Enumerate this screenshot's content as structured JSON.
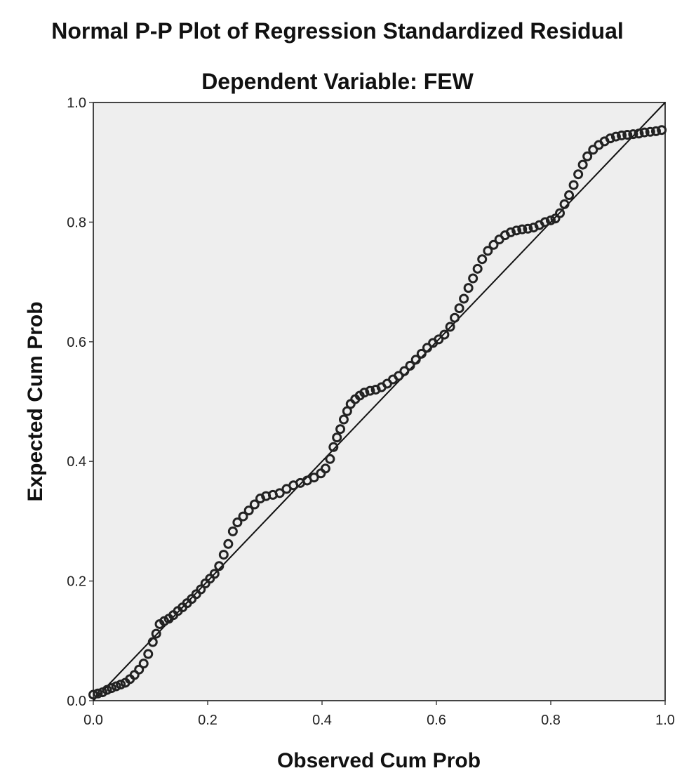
{
  "chart_data": {
    "type": "scatter",
    "title": "Normal P-P Plot of Regression Standardized Residual",
    "subtitle": "Dependent Variable: FEW",
    "xlabel": "Observed Cum Prob",
    "ylabel": "Expected Cum Prob",
    "xlim": [
      0.0,
      1.0
    ],
    "ylim": [
      0.0,
      1.0
    ],
    "xticks": [
      "0.0",
      "0.2",
      "0.4",
      "0.6",
      "0.8",
      "1.0"
    ],
    "yticks": [
      "0.0",
      "0.2",
      "0.4",
      "0.6",
      "0.8",
      "1.0"
    ],
    "grid": false,
    "reference_line": [
      [
        0.0,
        0.0
      ],
      [
        1.0,
        1.0
      ]
    ],
    "colors": {
      "plot_background": "#eeeeee",
      "points": "#222222",
      "line": "#111111"
    },
    "series": [
      {
        "points": [
          [
            0.0,
            0.01
          ],
          [
            0.008,
            0.012
          ],
          [
            0.016,
            0.014
          ],
          [
            0.024,
            0.018
          ],
          [
            0.032,
            0.021
          ],
          [
            0.04,
            0.024
          ],
          [
            0.048,
            0.027
          ],
          [
            0.056,
            0.03
          ],
          [
            0.064,
            0.036
          ],
          [
            0.072,
            0.043
          ],
          [
            0.08,
            0.052
          ],
          [
            0.088,
            0.062
          ],
          [
            0.096,
            0.078
          ],
          [
            0.104,
            0.098
          ],
          [
            0.11,
            0.112
          ],
          [
            0.116,
            0.128
          ],
          [
            0.124,
            0.133
          ],
          [
            0.132,
            0.137
          ],
          [
            0.14,
            0.143
          ],
          [
            0.148,
            0.15
          ],
          [
            0.156,
            0.156
          ],
          [
            0.164,
            0.163
          ],
          [
            0.172,
            0.17
          ],
          [
            0.18,
            0.178
          ],
          [
            0.188,
            0.186
          ],
          [
            0.196,
            0.196
          ],
          [
            0.204,
            0.204
          ],
          [
            0.212,
            0.212
          ],
          [
            0.22,
            0.225
          ],
          [
            0.228,
            0.244
          ],
          [
            0.236,
            0.262
          ],
          [
            0.244,
            0.283
          ],
          [
            0.252,
            0.298
          ],
          [
            0.262,
            0.308
          ],
          [
            0.272,
            0.318
          ],
          [
            0.282,
            0.328
          ],
          [
            0.292,
            0.338
          ],
          [
            0.302,
            0.342
          ],
          [
            0.314,
            0.344
          ],
          [
            0.326,
            0.347
          ],
          [
            0.338,
            0.354
          ],
          [
            0.35,
            0.36
          ],
          [
            0.362,
            0.364
          ],
          [
            0.374,
            0.368
          ],
          [
            0.386,
            0.373
          ],
          [
            0.398,
            0.38
          ],
          [
            0.406,
            0.388
          ],
          [
            0.414,
            0.404
          ],
          [
            0.42,
            0.424
          ],
          [
            0.426,
            0.44
          ],
          [
            0.432,
            0.454
          ],
          [
            0.438,
            0.47
          ],
          [
            0.444,
            0.484
          ],
          [
            0.45,
            0.496
          ],
          [
            0.458,
            0.504
          ],
          [
            0.466,
            0.51
          ],
          [
            0.474,
            0.515
          ],
          [
            0.484,
            0.518
          ],
          [
            0.494,
            0.52
          ],
          [
            0.504,
            0.524
          ],
          [
            0.514,
            0.53
          ],
          [
            0.524,
            0.537
          ],
          [
            0.534,
            0.543
          ],
          [
            0.544,
            0.551
          ],
          [
            0.554,
            0.56
          ],
          [
            0.564,
            0.57
          ],
          [
            0.574,
            0.58
          ],
          [
            0.584,
            0.59
          ],
          [
            0.594,
            0.598
          ],
          [
            0.604,
            0.604
          ],
          [
            0.614,
            0.612
          ],
          [
            0.624,
            0.625
          ],
          [
            0.632,
            0.64
          ],
          [
            0.64,
            0.656
          ],
          [
            0.648,
            0.672
          ],
          [
            0.656,
            0.69
          ],
          [
            0.664,
            0.706
          ],
          [
            0.672,
            0.722
          ],
          [
            0.68,
            0.738
          ],
          [
            0.69,
            0.752
          ],
          [
            0.7,
            0.762
          ],
          [
            0.71,
            0.771
          ],
          [
            0.72,
            0.778
          ],
          [
            0.73,
            0.783
          ],
          [
            0.74,
            0.786
          ],
          [
            0.75,
            0.788
          ],
          [
            0.76,
            0.789
          ],
          [
            0.77,
            0.791
          ],
          [
            0.78,
            0.795
          ],
          [
            0.79,
            0.8
          ],
          [
            0.8,
            0.803
          ],
          [
            0.808,
            0.806
          ],
          [
            0.816,
            0.815
          ],
          [
            0.824,
            0.83
          ],
          [
            0.832,
            0.845
          ],
          [
            0.84,
            0.862
          ],
          [
            0.848,
            0.88
          ],
          [
            0.856,
            0.896
          ],
          [
            0.864,
            0.91
          ],
          [
            0.874,
            0.921
          ],
          [
            0.884,
            0.929
          ],
          [
            0.894,
            0.935
          ],
          [
            0.904,
            0.94
          ],
          [
            0.914,
            0.943
          ],
          [
            0.924,
            0.945
          ],
          [
            0.934,
            0.946
          ],
          [
            0.944,
            0.947
          ],
          [
            0.954,
            0.948
          ],
          [
            0.964,
            0.95
          ],
          [
            0.974,
            0.951
          ],
          [
            0.984,
            0.952
          ],
          [
            0.994,
            0.954
          ]
        ]
      }
    ]
  }
}
